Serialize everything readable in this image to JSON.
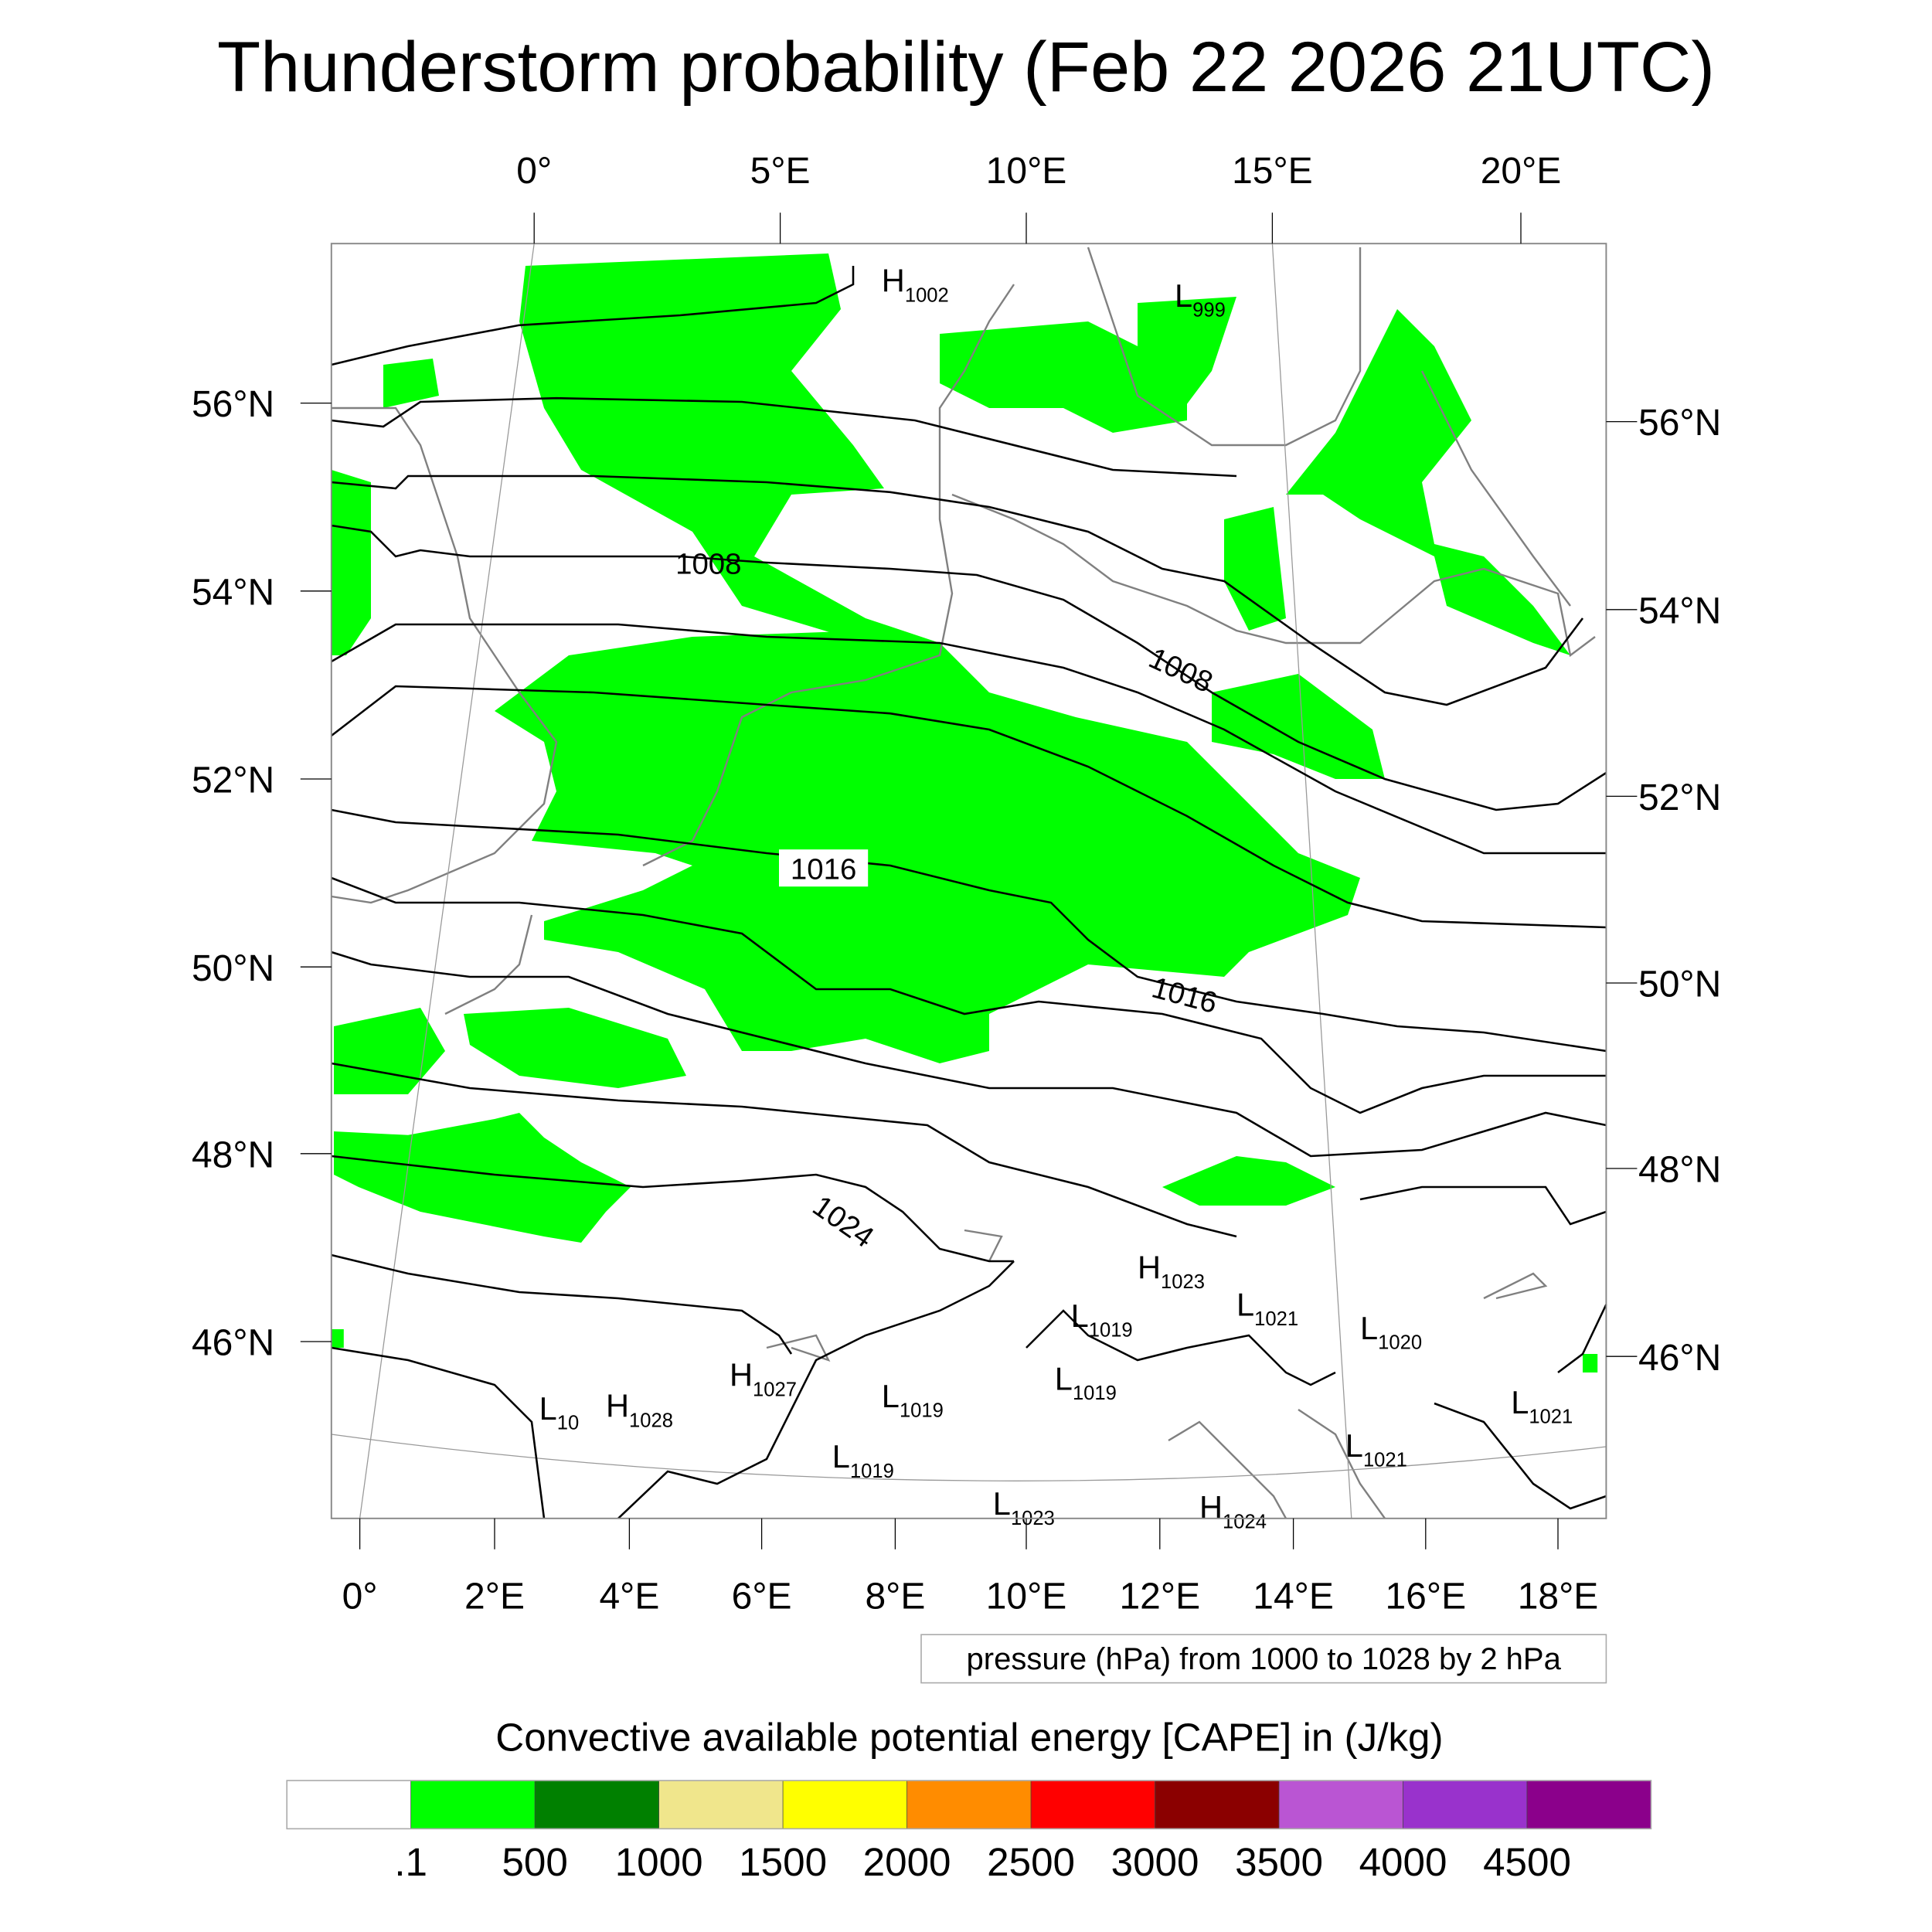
{
  "chart_data": {
    "type": "heatmap",
    "title": "Thunderstorm probability (Feb 22 2026 21UTC)",
    "top_lon_ticks": [
      "0°",
      "5°E",
      "10°E",
      "15°E",
      "20°E"
    ],
    "left_lat_ticks": [
      "56°N",
      "54°N",
      "52°N",
      "50°N",
      "48°N",
      "46°N"
    ],
    "right_lat_ticks": [
      "56°N",
      "54°N",
      "52°N",
      "50°N",
      "48°N",
      "46°N"
    ],
    "bottom_lon_ticks": [
      "0°",
      "2°E",
      "4°E",
      "6°E",
      "8°E",
      "10°E",
      "12°E",
      "14°E",
      "16°E",
      "18°E"
    ],
    "contour_info": "pressure (hPa) from 1000 to 1028 by 2 hPa",
    "contour_labels": [
      "1008",
      "1008",
      "1016",
      "1016",
      "1024"
    ],
    "pressure_centers": [
      {
        "type": "H",
        "value": "1002"
      },
      {
        "type": "L",
        "value": "999"
      },
      {
        "type": "H",
        "value": "1023"
      },
      {
        "type": "L",
        "value": "1021"
      },
      {
        "type": "L",
        "value": "1020"
      },
      {
        "type": "L",
        "value": "1019"
      },
      {
        "type": "L",
        "value": "1019"
      },
      {
        "type": "L",
        "value": "1019"
      },
      {
        "type": "L",
        "value": "1019"
      },
      {
        "type": "H",
        "value": "1027"
      },
      {
        "type": "L",
        "value": "10"
      },
      {
        "type": "H",
        "value": "1028"
      },
      {
        "type": "L",
        "value": "1021"
      },
      {
        "type": "L",
        "value": "1021"
      },
      {
        "type": "L",
        "value": "1023"
      },
      {
        "type": "H",
        "value": "1024"
      }
    ],
    "colorbar": {
      "title": "Convective available potential energy [CAPE] in (J/kg)",
      "labels": [
        ".1",
        "500",
        "1000",
        "1500",
        "2000",
        "2500",
        "3000",
        "3500",
        "4000",
        "4500"
      ],
      "colors": [
        "#ffffff",
        "#00ff00",
        "#008000",
        "#f0e68c",
        "#ffff00",
        "#ff8c00",
        "#ff0000",
        "#8b0000",
        "#ba55d3",
        "#9932cc",
        "#8b008b"
      ]
    },
    "field_present_class": ".1-500"
  }
}
